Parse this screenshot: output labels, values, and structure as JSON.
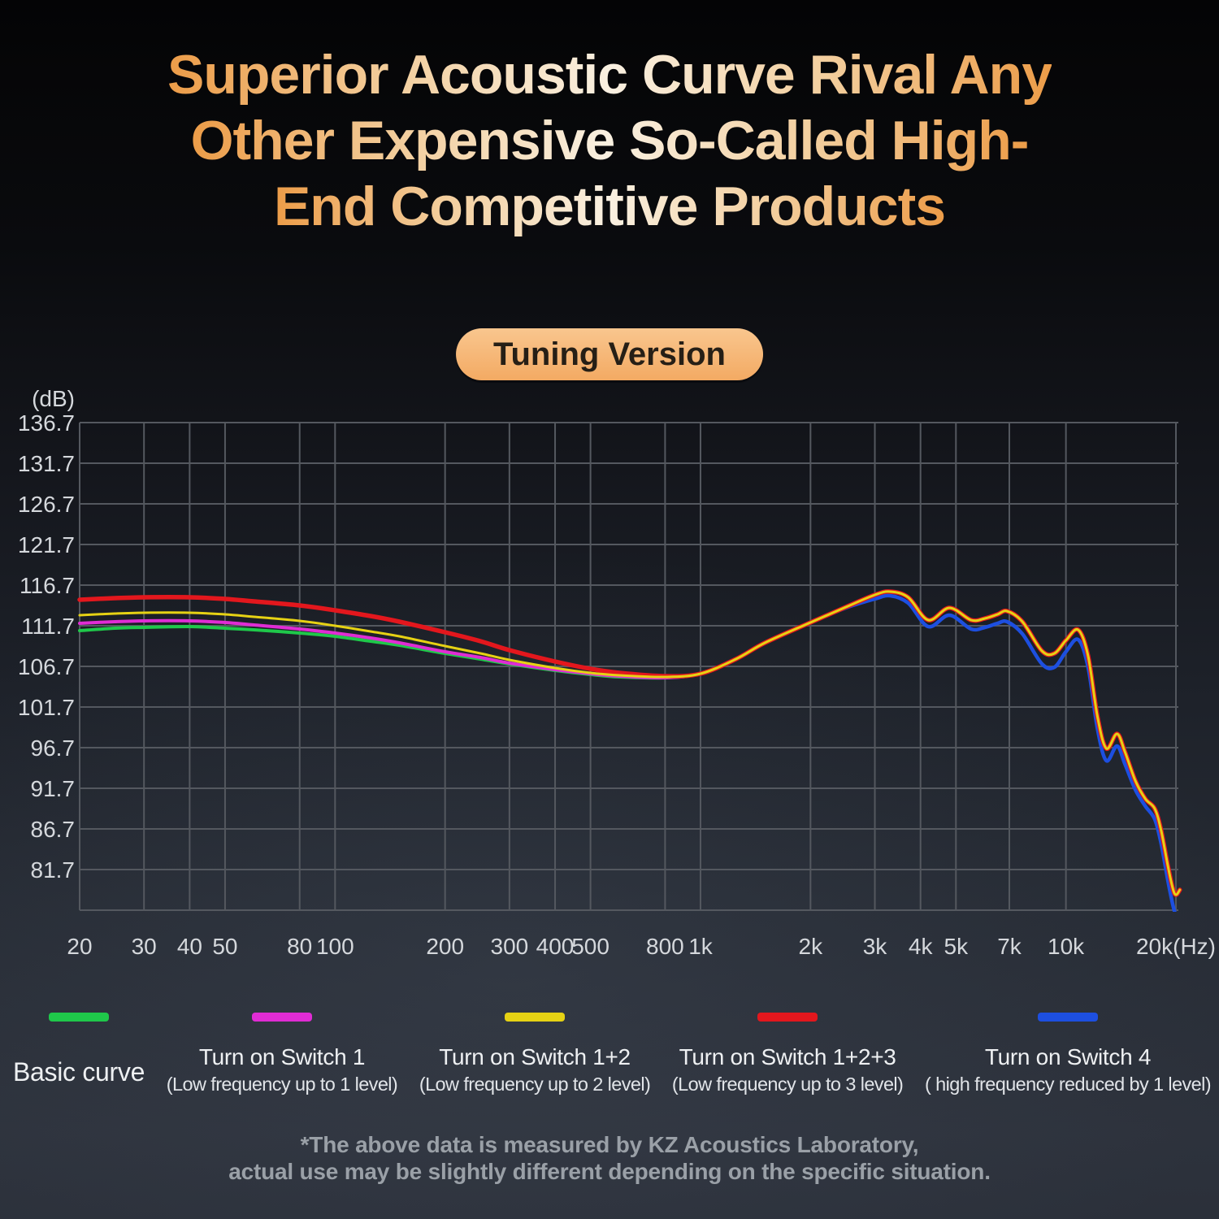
{
  "title": {
    "lines": [
      "Superior Acoustic Curve Rival Any",
      "Other Expensive So-Called High-",
      "End Competitive Products"
    ]
  },
  "badge": {
    "label": "Tuning Version"
  },
  "chart_data": {
    "type": "line",
    "x_scale": "log",
    "x_unit": "Hz",
    "y_unit": "dB",
    "ylabel": "(dB)",
    "grid": true,
    "legend_position": "bottom",
    "y_ticks": [
      136.7,
      131.7,
      126.7,
      121.7,
      116.7,
      111.7,
      106.7,
      101.7,
      96.7,
      91.7,
      86.7,
      81.7
    ],
    "y_min_line": 76.7,
    "x_ticks": [
      "20",
      "30",
      "40",
      "50",
      "80",
      "100",
      "200",
      "300",
      "400",
      "500",
      "800",
      "1k",
      "2k",
      "3k",
      "4k",
      "5k",
      "7k",
      "10k",
      "20k(Hz)"
    ],
    "x_tick_values": [
      20,
      30,
      40,
      50,
      80,
      100,
      200,
      300,
      400,
      500,
      800,
      1000,
      2000,
      3000,
      4000,
      5000,
      7000,
      10000,
      20000
    ],
    "x": [
      20,
      25,
      30,
      40,
      50,
      60,
      80,
      100,
      125,
      150,
      200,
      250,
      300,
      400,
      500,
      600,
      800,
      1000,
      1250,
      1500,
      2000,
      2500,
      3000,
      3300,
      3700,
      4200,
      4800,
      5500,
      6000,
      6500,
      6900,
      7600,
      8600,
      9300,
      10000,
      10800,
      11500,
      12200,
      12900,
      13800,
      14500,
      15500,
      16500,
      17500,
      18200,
      19000,
      19600,
      20000,
      20500
    ],
    "series": [
      {
        "name": "Basic curve",
        "sublabel": "",
        "color": "#1fc84a",
        "values": [
          111.1,
          111.4,
          111.5,
          111.6,
          111.4,
          111.2,
          110.8,
          110.4,
          109.8,
          109.3,
          108.3,
          107.6,
          107.0,
          106.2,
          105.7,
          105.4,
          105.3,
          105.8,
          107.6,
          109.6,
          112.1,
          114.0,
          115.5,
          115.9,
          115.2,
          112.4,
          113.9,
          112.4,
          112.6,
          113.1,
          113.5,
          112.2,
          108.6,
          108.3,
          109.9,
          111.2,
          108.0,
          100.5,
          96.6,
          98.4,
          96.2,
          92.6,
          90.4,
          89.2,
          86.6,
          82.2,
          79.4,
          78.6,
          79.2
        ]
      },
      {
        "name": "Turn on Switch 1",
        "sublabel": "(Low frequency up to 1 level)",
        "color": "#e02cd4",
        "values": [
          112.0,
          112.2,
          112.3,
          112.3,
          112.1,
          111.8,
          111.3,
          110.8,
          110.2,
          109.6,
          108.5,
          107.8,
          107.1,
          106.3,
          105.8,
          105.5,
          105.3,
          105.8,
          107.6,
          109.6,
          112.1,
          114.0,
          115.5,
          115.9,
          115.2,
          112.4,
          113.9,
          112.4,
          112.6,
          113.1,
          113.5,
          112.2,
          108.6,
          108.3,
          109.9,
          111.2,
          108.0,
          100.5,
          96.6,
          98.4,
          96.2,
          92.6,
          90.4,
          89.2,
          86.6,
          82.2,
          79.4,
          78.6,
          79.2
        ]
      },
      {
        "name": "Turn on Switch 1+2",
        "sublabel": "(Low frequency up to 2 level)",
        "color": "#e6d214",
        "values": [
          113.0,
          113.2,
          113.3,
          113.3,
          113.1,
          112.8,
          112.3,
          111.7,
          111.0,
          110.4,
          109.2,
          108.3,
          107.5,
          106.5,
          105.9,
          105.6,
          105.4,
          105.8,
          107.6,
          109.6,
          112.1,
          114.0,
          115.5,
          115.9,
          115.2,
          112.4,
          113.9,
          112.4,
          112.6,
          113.1,
          113.5,
          112.2,
          108.6,
          108.3,
          109.9,
          111.2,
          108.0,
          100.5,
          96.6,
          98.4,
          96.2,
          92.6,
          90.4,
          89.2,
          86.6,
          82.2,
          79.4,
          78.6,
          79.2
        ]
      },
      {
        "name": "Turn on Switch 1+2+3",
        "sublabel": "(Low frequency up to 3 level)",
        "color": "#e3171d",
        "values": [
          114.9,
          115.1,
          115.2,
          115.2,
          115.0,
          114.7,
          114.2,
          113.6,
          112.9,
          112.2,
          110.9,
          109.8,
          108.7,
          107.3,
          106.4,
          105.9,
          105.5,
          105.8,
          107.6,
          109.6,
          112.1,
          114.0,
          115.5,
          115.9,
          115.2,
          112.4,
          113.9,
          112.4,
          112.6,
          113.1,
          113.5,
          112.2,
          108.6,
          108.3,
          109.9,
          111.2,
          108.0,
          100.5,
          96.6,
          98.4,
          96.2,
          92.6,
          90.4,
          89.2,
          86.6,
          82.2,
          79.4,
          78.6,
          79.2
        ]
      },
      {
        "name": "Turn on Switch 4",
        "sublabel": "( high frequency reduced by 1 level)",
        "color": "#1d4fe0",
        "values": [
          114.9,
          115.1,
          115.2,
          115.2,
          115.0,
          114.7,
          114.2,
          113.6,
          112.9,
          112.2,
          110.9,
          109.8,
          108.7,
          107.3,
          106.4,
          105.9,
          105.5,
          105.8,
          107.6,
          109.6,
          112.1,
          113.9,
          115.0,
          115.4,
          114.5,
          111.6,
          113.0,
          111.3,
          111.5,
          112.0,
          112.2,
          110.7,
          107.0,
          106.6,
          108.5,
          110.0,
          106.6,
          99.0,
          95.1,
          96.9,
          94.7,
          91.5,
          89.5,
          87.9,
          85.0,
          80.4,
          77.4,
          76.0,
          74.6
        ]
      }
    ]
  },
  "footer": {
    "lines": [
      "*The above data is measured by KZ Acoustics Laboratory,",
      "actual use may be slightly different depending on the specific situation."
    ]
  }
}
